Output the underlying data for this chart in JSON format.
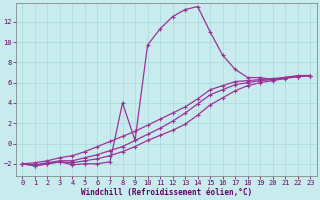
{
  "bg_color": "#c8ecee",
  "grid_color": "#a8d8dc",
  "line_color": "#993399",
  "xlabel": "Windchill (Refroidissement éolien,°C)",
  "xlabel_color": "#660066",
  "tick_color": "#660066",
  "xlim": [
    -0.5,
    23.5
  ],
  "ylim": [
    -3.2,
    13.8
  ],
  "yticks": [
    -2,
    0,
    2,
    4,
    6,
    8,
    10,
    12
  ],
  "xticks": [
    0,
    1,
    2,
    3,
    4,
    5,
    6,
    7,
    8,
    9,
    10,
    11,
    12,
    13,
    14,
    15,
    16,
    17,
    18,
    19,
    20,
    21,
    22,
    23
  ],
  "curve1_x": [
    0,
    1,
    2,
    3,
    4,
    5,
    6,
    7,
    8,
    9,
    10,
    11,
    12,
    13,
    14,
    15,
    16,
    17,
    18,
    19,
    20,
    21,
    22,
    23
  ],
  "curve1_y": [
    -2,
    -2.2,
    -2,
    -1.8,
    -2.1,
    -2,
    -2,
    -1.8,
    4.0,
    0.3,
    9.7,
    11.3,
    12.5,
    13.2,
    13.5,
    11.0,
    8.7,
    7.3,
    6.5,
    6.5,
    6.3,
    6.5,
    6.7,
    6.7
  ],
  "curve2_x": [
    0,
    1,
    2,
    3,
    4,
    5,
    6,
    7,
    8,
    9,
    10,
    11,
    12,
    13,
    14,
    15,
    16,
    17,
    18,
    19,
    20,
    21,
    22,
    23
  ],
  "curve2_y": [
    -2,
    -2.2,
    -2.0,
    -1.8,
    -1.9,
    -1.7,
    -1.5,
    -1.2,
    -0.8,
    -0.3,
    0.3,
    0.8,
    1.3,
    1.9,
    2.8,
    3.8,
    4.5,
    5.2,
    5.7,
    6.0,
    6.2,
    6.4,
    6.6,
    6.7
  ],
  "curve3_x": [
    0,
    1,
    2,
    3,
    4,
    5,
    6,
    7,
    8,
    9,
    10,
    11,
    12,
    13,
    14,
    15,
    16,
    17,
    18,
    19,
    20,
    21,
    22,
    23
  ],
  "curve3_y": [
    -2,
    -2.1,
    -1.9,
    -1.7,
    -1.7,
    -1.4,
    -1.1,
    -0.7,
    -0.3,
    0.3,
    0.9,
    1.5,
    2.2,
    3.0,
    3.9,
    4.8,
    5.3,
    5.8,
    6.0,
    6.2,
    6.3,
    6.5,
    6.6,
    6.7
  ],
  "curve4_x": [
    0,
    1,
    2,
    3,
    4,
    5,
    6,
    7,
    8,
    9,
    10,
    11,
    12,
    13,
    14,
    15,
    16,
    17,
    18,
    19,
    20,
    21,
    22,
    23
  ],
  "curve4_y": [
    -2,
    -1.9,
    -1.7,
    -1.4,
    -1.2,
    -0.8,
    -0.3,
    0.2,
    0.7,
    1.2,
    1.8,
    2.4,
    3.0,
    3.6,
    4.4,
    5.3,
    5.7,
    6.1,
    6.2,
    6.3,
    6.4,
    6.5,
    6.6,
    6.7
  ]
}
